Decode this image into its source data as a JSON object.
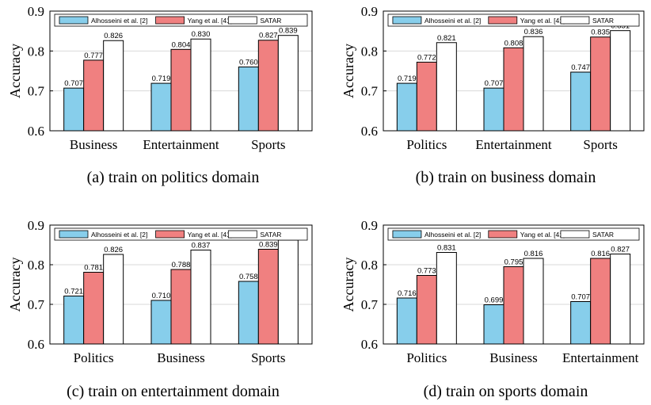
{
  "colors": {
    "series": [
      "#87ceeb",
      "#f08080",
      "#ffffff"
    ],
    "grid": "#d9d9d9",
    "axis": "#000000"
  },
  "chart_data": [
    {
      "type": "bar",
      "ylabel": "Accuracy",
      "ylim": [
        0.6,
        0.9
      ],
      "yticks": [
        "0.6",
        "0.7",
        "0.8",
        "0.9"
      ],
      "grid": true,
      "legend_position": "top",
      "caption": "(a)  train on politics domain",
      "categories": [
        "Business",
        "Entertainment",
        "Sports"
      ],
      "series": [
        {
          "name": "Alhosseini et al. [2]",
          "values": [
            0.707,
            0.719,
            0.76
          ],
          "labels": [
            "0.707",
            "0.719",
            "0.760"
          ]
        },
        {
          "name": "Yang et al. [41]",
          "values": [
            0.777,
            0.804,
            0.827
          ],
          "labels": [
            "0.777",
            "0.804",
            "0.827"
          ]
        },
        {
          "name": "SATAR",
          "values": [
            0.826,
            0.83,
            0.839
          ],
          "labels": [
            "0.826",
            "0.830",
            "0.839"
          ]
        }
      ]
    },
    {
      "type": "bar",
      "ylabel": "Accuracy",
      "ylim": [
        0.6,
        0.9
      ],
      "yticks": [
        "0.6",
        "0.7",
        "0.8",
        "0.9"
      ],
      "grid": true,
      "legend_position": "top",
      "caption": "(b)  train on business domain",
      "categories": [
        "Politics",
        "Entertainment",
        "Sports"
      ],
      "series": [
        {
          "name": "Alhosseini et al. [2]",
          "values": [
            0.719,
            0.707,
            0.747
          ],
          "labels": [
            "0.719",
            "0.707",
            "0.747"
          ]
        },
        {
          "name": "Yang et al. [41]",
          "values": [
            0.772,
            0.808,
            0.835
          ],
          "labels": [
            "0.772",
            "0.808",
            "0.835"
          ]
        },
        {
          "name": "SATAR",
          "values": [
            0.821,
            0.836,
            0.851
          ],
          "labels": [
            "0.821",
            "0.836",
            "0.851"
          ]
        }
      ]
    },
    {
      "type": "bar",
      "ylabel": "Accuracy",
      "ylim": [
        0.6,
        0.9
      ],
      "yticks": [
        "0.6",
        "0.7",
        "0.8",
        "0.9"
      ],
      "grid": true,
      "legend_position": "top",
      "caption": "(c)  train on entertainment domain",
      "categories": [
        "Politics",
        "Business",
        "Sports"
      ],
      "series": [
        {
          "name": "Alhosseini et al. [2]",
          "values": [
            0.721,
            0.71,
            0.758
          ],
          "labels": [
            "0.721",
            "0.710",
            "0.758"
          ]
        },
        {
          "name": "Yang et al. [41]",
          "values": [
            0.781,
            0.788,
            0.839
          ],
          "labels": [
            "0.781",
            "0.788",
            "0.839"
          ]
        },
        {
          "name": "SATAR",
          "values": [
            0.826,
            0.837,
            0.862
          ],
          "labels": [
            "0.826",
            "0.837",
            "0.862"
          ]
        }
      ]
    },
    {
      "type": "bar",
      "ylabel": "Accuracy",
      "ylim": [
        0.6,
        0.9
      ],
      "yticks": [
        "0.6",
        "0.7",
        "0.8",
        "0.9"
      ],
      "grid": true,
      "legend_position": "top",
      "caption": "(d)  train on sports domain",
      "categories": [
        "Politics",
        "Business",
        "Entertainment"
      ],
      "series": [
        {
          "name": "Alhosseini et al. [2]",
          "values": [
            0.716,
            0.699,
            0.707
          ],
          "labels": [
            "0.716",
            "0.699",
            "0.707"
          ]
        },
        {
          "name": "Yang et al. [41]",
          "values": [
            0.773,
            0.795,
            0.816
          ],
          "labels": [
            "0.773",
            "0.795",
            "0.816"
          ]
        },
        {
          "name": "SATAR",
          "values": [
            0.831,
            0.816,
            0.827
          ],
          "labels": [
            "0.831",
            "0.816",
            "0.827"
          ]
        }
      ]
    }
  ]
}
